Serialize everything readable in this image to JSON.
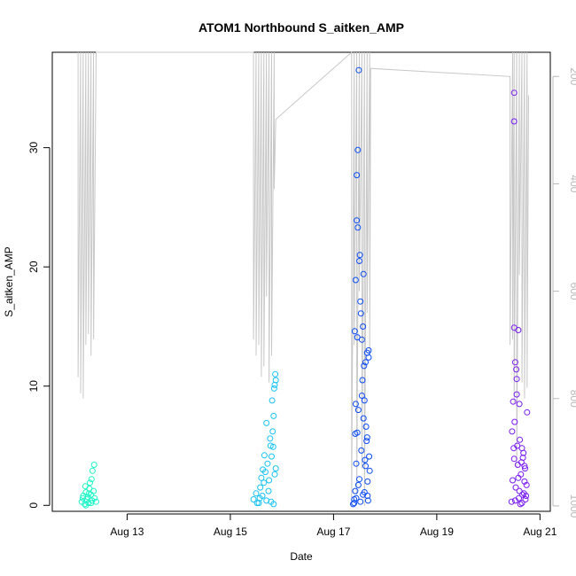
{
  "chart_data": {
    "type": "scatter",
    "title": "ATOM1 Northbound S_aitken_AMP",
    "xlabel": "Date",
    "ylabel": "S_aitken_AMP",
    "x_ticks": [
      "Aug 13",
      "Aug 15",
      "Aug 17",
      "Aug 19",
      "Aug 21"
    ],
    "x_tick_days": [
      13,
      15,
      17,
      19,
      21
    ],
    "xlim_days": [
      11.55,
      21.2
    ],
    "y_ticks": [
      0,
      10,
      20,
      30
    ],
    "ylim": [
      -0.5,
      38
    ],
    "y2_ticks": [
      200,
      400,
      600,
      800,
      1000
    ],
    "y2lim": [
      1010,
      155
    ],
    "grid": false,
    "legend": "none",
    "point_series_colors": [
      "#1CF5C8",
      "#17C3F5",
      "#0B4BF5",
      "#7A1BF0"
    ],
    "line_color": "#c8c8c8",
    "point_series": [
      {
        "x": [
          12.12,
          12.15,
          12.18,
          12.2,
          12.22,
          12.25,
          12.27,
          12.3,
          12.32,
          12.35,
          12.37,
          12.4,
          12.14,
          12.2,
          12.26,
          12.31,
          12.36,
          12.19,
          12.28,
          12.33,
          12.24,
          12.3
        ],
        "y": [
          0.3,
          0.8,
          0.1,
          1.1,
          0.5,
          0.2,
          1.4,
          0.9,
          0.4,
          1.2,
          0.6,
          0.3,
          0.6,
          0.0,
          1.0,
          2.2,
          3.4,
          1.6,
          1.9,
          2.9,
          0.7,
          0.2
        ]
      },
      {
        "x": [
          15.45,
          15.5,
          15.55,
          15.58,
          15.6,
          15.62,
          15.65,
          15.68,
          15.7,
          15.72,
          15.75,
          15.78,
          15.8,
          15.82,
          15.84,
          15.85,
          15.86,
          15.87,
          15.88,
          15.63,
          15.7,
          15.77,
          15.81,
          15.83,
          15.86,
          15.74,
          15.79,
          15.84,
          15.66,
          15.88,
          15.57,
          15.52
        ],
        "y": [
          0.5,
          1.0,
          0.2,
          1.5,
          2.3,
          0.8,
          1.9,
          2.8,
          0.4,
          3.5,
          2.1,
          5.0,
          4.1,
          6.2,
          7.5,
          9.8,
          10.1,
          11.0,
          10.5,
          3.0,
          6.9,
          5.6,
          8.8,
          4.9,
          2.6,
          1.2,
          0.3,
          0.1,
          4.2,
          3.1,
          0.6,
          0.2
        ]
      },
      {
        "x": [
          17.38,
          17.4,
          17.42,
          17.44,
          17.46,
          17.48,
          17.5,
          17.52,
          17.54,
          17.56,
          17.58,
          17.6,
          17.62,
          17.64,
          17.66,
          17.68,
          17.7,
          17.41,
          17.43,
          17.45,
          17.47,
          17.49,
          17.51,
          17.53,
          17.55,
          17.57,
          17.59,
          17.61,
          17.63,
          17.65,
          17.67,
          17.69,
          17.45,
          17.47,
          17.43,
          17.5,
          17.55,
          17.6,
          17.65,
          17.4,
          17.52,
          17.58,
          17.62,
          17.66,
          17.68,
          17.44,
          17.48,
          17.57,
          17.42,
          17.46
        ],
        "y": [
          0.1,
          0.5,
          1.2,
          3.5,
          6.1,
          8.0,
          2.2,
          0.3,
          4.6,
          10.5,
          7.3,
          1.1,
          12.0,
          5.4,
          0.8,
          13.0,
          2.9,
          14.6,
          18.9,
          23.9,
          29.8,
          36.5,
          21.0,
          16.1,
          9.2,
          15.0,
          11.7,
          3.8,
          6.6,
          12.8,
          0.4,
          4.1,
          27.7,
          23.3,
          8.5,
          20.5,
          13.9,
          8.8,
          5.7,
          0.2,
          17.1,
          19.4,
          3.3,
          2.0,
          12.4,
          0.6,
          1.7,
          0.9,
          6.0,
          14.1
        ]
      },
      {
        "x": [
          20.45,
          20.47,
          20.49,
          20.51,
          20.53,
          20.55,
          20.57,
          20.59,
          20.61,
          20.63,
          20.65,
          20.67,
          20.69,
          20.71,
          20.73,
          20.75,
          20.46,
          20.48,
          20.5,
          20.52,
          20.54,
          20.56,
          20.58,
          20.6,
          20.62,
          20.64,
          20.66,
          20.68,
          20.7,
          20.72,
          20.74,
          20.5,
          20.5,
          20.5,
          20.58,
          20.52,
          20.6,
          20.65,
          20.55,
          20.7
        ],
        "y": [
          0.3,
          2.1,
          4.8,
          7.0,
          1.5,
          9.3,
          3.4,
          0.6,
          5.5,
          2.6,
          0.2,
          4.0,
          1.0,
          3.1,
          0.8,
          7.8,
          6.2,
          8.7,
          3.9,
          0.4,
          11.4,
          5.0,
          2.3,
          1.2,
          0.1,
          3.6,
          0.9,
          4.4,
          2.0,
          0.5,
          1.7,
          34.6,
          32.2,
          14.9,
          14.7,
          12.0,
          8.5,
          4.8,
          10.6,
          3.3
        ]
      }
    ],
    "line_series": {
      "x": [
        12.05,
        12.05,
        12.1,
        12.1,
        12.15,
        12.15,
        12.2,
        12.2,
        12.25,
        12.25,
        12.3,
        12.3,
        12.35,
        12.35,
        12.4,
        15.45,
        15.45,
        15.5,
        15.5,
        15.55,
        15.55,
        15.6,
        15.6,
        15.65,
        15.65,
        15.7,
        15.7,
        15.75,
        15.75,
        15.8,
        15.8,
        15.85,
        15.85,
        15.88,
        17.35,
        17.35,
        17.4,
        17.4,
        17.45,
        17.45,
        17.5,
        17.5,
        17.55,
        17.55,
        17.6,
        17.6,
        17.65,
        17.65,
        17.7,
        17.7,
        17.72,
        20.42,
        20.42,
        20.47,
        20.47,
        20.5,
        20.5,
        20.55,
        20.55,
        20.6,
        20.6,
        20.65,
        20.65,
        20.7,
        20.7,
        20.75,
        20.75,
        20.78
      ],
      "y": [
        155,
        760,
        155,
        790,
        155,
        800,
        155,
        700,
        155,
        680,
        155,
        720,
        155,
        690,
        155,
        155,
        690,
        155,
        720,
        155,
        700,
        155,
        760,
        155,
        740,
        155,
        610,
        155,
        770,
        155,
        720,
        155,
        410,
        280,
        155,
        1000,
        155,
        700,
        155,
        980,
        155,
        600,
        155,
        930,
        155,
        1000,
        155,
        640,
        155,
        720,
        185,
        200,
        700,
        155,
        690,
        155,
        810,
        155,
        930,
        155,
        570,
        155,
        770,
        155,
        800,
        155,
        780,
        235
      ]
    }
  }
}
